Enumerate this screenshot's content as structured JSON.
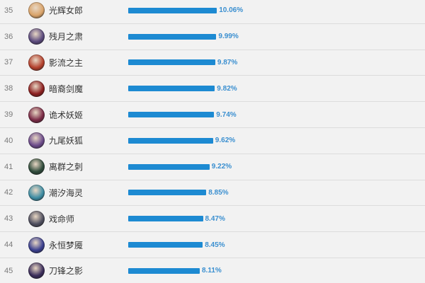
{
  "rows": [
    {
      "rank": "35",
      "name": "光辉女郎",
      "rate": "10.06%",
      "rate_value": 10.06,
      "avatar_color": "#d9a36a",
      "avatar_icon": "lux-portrait"
    },
    {
      "rank": "36",
      "name": "残月之肃",
      "rate": "9.99%",
      "rate_value": 9.99,
      "avatar_color": "#5b4a7e",
      "avatar_icon": "aphelios-portrait"
    },
    {
      "rank": "37",
      "name": "影流之主",
      "rate": "9.87%",
      "rate_value": 9.87,
      "avatar_color": "#b3402c",
      "avatar_icon": "zed-portrait"
    },
    {
      "rank": "38",
      "name": "暗裔剑魔",
      "rate": "9.82%",
      "rate_value": 9.82,
      "avatar_color": "#8c1f1f",
      "avatar_icon": "aatrox-portrait"
    },
    {
      "rank": "39",
      "name": "诡术妖姬",
      "rate": "9.74%",
      "rate_value": 9.74,
      "avatar_color": "#7a2a46",
      "avatar_icon": "leblanc-portrait"
    },
    {
      "rank": "40",
      "name": "九尾妖狐",
      "rate": "9.62%",
      "rate_value": 9.62,
      "avatar_color": "#6b4a8a",
      "avatar_icon": "ahri-portrait"
    },
    {
      "rank": "41",
      "name": "离群之刺",
      "rate": "9.22%",
      "rate_value": 9.22,
      "avatar_color": "#2f4b3b",
      "avatar_icon": "khazix-portrait"
    },
    {
      "rank": "42",
      "name": "潮汐海灵",
      "rate": "8.85%",
      "rate_value": 8.85,
      "avatar_color": "#3d8ca3",
      "avatar_icon": "fizz-portrait"
    },
    {
      "rank": "43",
      "name": "戏命师",
      "rate": "8.47%",
      "rate_value": 8.47,
      "avatar_color": "#4e4e5e",
      "avatar_icon": "jhin-portrait"
    },
    {
      "rank": "44",
      "name": "永恒梦魇",
      "rate": "8.45%",
      "rate_value": 8.45,
      "avatar_color": "#3a3f8f",
      "avatar_icon": "nocturne-portrait"
    },
    {
      "rank": "45",
      "name": "刀锋之影",
      "rate": "8.11%",
      "rate_value": 8.11,
      "avatar_color": "#3a2c5a",
      "avatar_icon": "talon-portrait"
    }
  ],
  "colors": {
    "bar": "#1d8ad2",
    "percent_text": "#3a8fd0"
  }
}
